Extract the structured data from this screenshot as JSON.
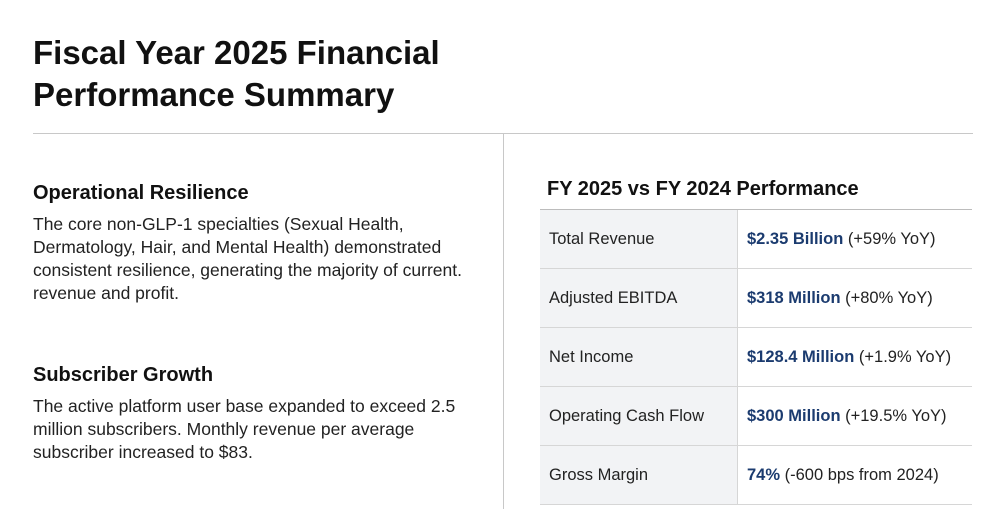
{
  "page": {
    "title": "Fiscal Year 2025 Financial Performance Summary"
  },
  "left": {
    "sections": [
      {
        "heading": "Operational Resilience",
        "body": "The core non-GLP-1 specialties (Sexual Health, Dermatology, Hair, and Mental Health) demonstrated consistent resilience, generating the majority of current. revenue and profit."
      },
      {
        "heading": "Subscriber Growth",
        "body": "The active platform user base expanded to exceed 2.5 million subscribers. Monthly revenue per average subscriber increased to $83."
      }
    ]
  },
  "performance_table": {
    "title": "FY 2025 vs FY 2024 Performance",
    "rows": [
      {
        "metric": "Total Revenue",
        "value": "$2.35 Billion",
        "change": "(+59% YoY)"
      },
      {
        "metric": "Adjusted EBITDA",
        "value": "$318 Million",
        "change": "(+80% YoY)"
      },
      {
        "metric": "Net Income",
        "value": "$128.4 Million",
        "change": "(+1.9% YoY)"
      },
      {
        "metric": "Operating Cash Flow",
        "value": "$300 Million",
        "change": "(+19.5% YoY)"
      },
      {
        "metric": "Gross Margin",
        "value": "74%",
        "change": "(-600 bps from 2024)"
      }
    ]
  },
  "colors": {
    "accent_value": "#1b3b6f",
    "metric_cell_bg": "#f2f3f5",
    "rule": "#c8c8c8"
  }
}
